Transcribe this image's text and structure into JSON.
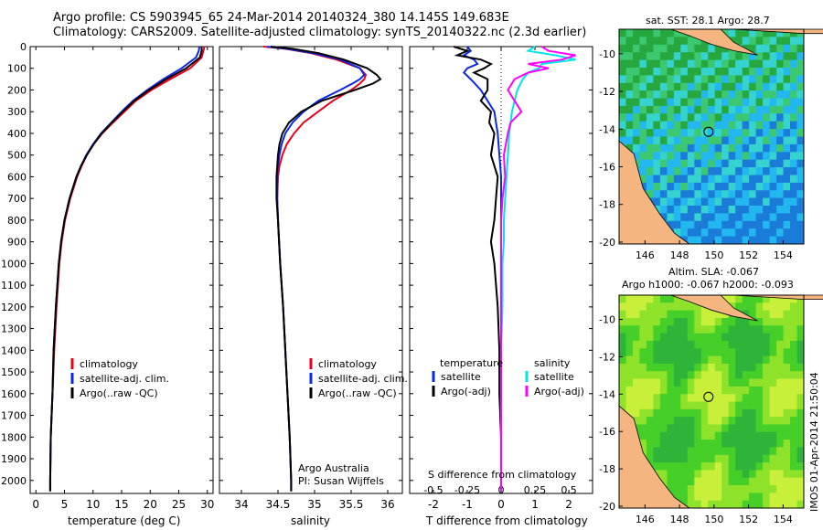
{
  "header": {
    "line1": "Argo profile: CS 5903945_65 24-Mar-2014 20140324_380 14.145S 149.683E",
    "line2": "Climatology: CARS2009. Satellite-adjusted climatology: synTS_20140322.nc (2.3d earlier)"
  },
  "side_text": "IMOS 01-Apr-2014 21:50:04",
  "colors": {
    "clim": "#e8001c",
    "sat": "#0a28e6",
    "argo": "#000000",
    "sat_s": "#00e6e6",
    "argo_s": "#ff00ff",
    "land": "#f4b580"
  },
  "chart_data": [
    {
      "type": "line",
      "id": "temperature",
      "xlabel": "temperature (deg C)",
      "xlim": [
        -1,
        31
      ],
      "xticks": [
        "0",
        "5",
        "10",
        "15",
        "20",
        "25",
        "30"
      ],
      "ylim": [
        0,
        2060
      ],
      "yticks": [
        "0",
        "100",
        "200",
        "300",
        "400",
        "500",
        "600",
        "700",
        "800",
        "900",
        "1000",
        "1100",
        "1200",
        "1300",
        "1400",
        "1500",
        "1600",
        "1700",
        "1800",
        "1900",
        "2000"
      ],
      "depth": [
        0,
        20,
        50,
        100,
        150,
        200,
        250,
        300,
        350,
        400,
        450,
        500,
        550,
        600,
        700,
        800,
        900,
        1000,
        1200,
        1400,
        1600,
        1800,
        2000,
        2050
      ],
      "series": [
        {
          "name": "climatology",
          "key": "clim",
          "values": [
            29.5,
            29.3,
            29.0,
            27.0,
            23.5,
            20.2,
            17.5,
            15.5,
            13.5,
            11.6,
            10.1,
            8.9,
            8.0,
            7.2,
            6.0,
            5.1,
            4.5,
            4.1,
            3.6,
            3.2,
            2.9,
            2.6,
            2.5,
            2.5
          ]
        },
        {
          "name": "satellite-adj. clim.",
          "key": "sat",
          "values": [
            28.6,
            28.5,
            28.0,
            25.5,
            22.3,
            19.5,
            17.0,
            15.0,
            13.2,
            11.4,
            10.0,
            8.8,
            7.9,
            7.1,
            5.9,
            5.0,
            4.4,
            4.0,
            3.5,
            3.1,
            2.9,
            2.6,
            2.5,
            2.5
          ]
        },
        {
          "name": "Argo(..raw -QC)",
          "key": "argo",
          "values": [
            29.0,
            29.0,
            28.7,
            26.3,
            22.8,
            19.8,
            17.2,
            15.2,
            13.3,
            11.5,
            10.1,
            8.9,
            7.9,
            7.1,
            5.9,
            5.0,
            4.4,
            4.0,
            3.5,
            3.1,
            2.9,
            2.6,
            2.5,
            2.5
          ]
        }
      ],
      "legend": [
        "climatology",
        "satellite-adj. clim.",
        "Argo(..raw -QC)"
      ]
    },
    {
      "type": "line",
      "id": "salinity",
      "xlabel": "salinity",
      "xlim": [
        33.7,
        36.2
      ],
      "xticks": [
        "34",
        "34.5",
        "35",
        "35.5",
        "36"
      ],
      "ylim": [
        0,
        2060
      ],
      "depth": [
        0,
        10,
        30,
        60,
        100,
        130,
        150,
        170,
        200,
        250,
        300,
        350,
        400,
        450,
        500,
        550,
        600,
        700,
        800,
        1000,
        1200,
        1400,
        1600,
        1800,
        2000,
        2050
      ],
      "series": [
        {
          "name": "climatology",
          "key": "clim",
          "values": [
            34.3,
            34.6,
            34.95,
            35.3,
            35.62,
            35.7,
            35.68,
            35.62,
            35.5,
            35.25,
            35.05,
            34.85,
            34.72,
            34.62,
            34.56,
            34.52,
            34.5,
            34.49,
            34.5,
            34.53,
            34.57,
            34.6,
            34.63,
            34.66,
            34.68,
            34.68
          ]
        },
        {
          "name": "satellite-adj. clim.",
          "key": "sat",
          "values": [
            34.35,
            34.62,
            34.98,
            35.35,
            35.62,
            35.68,
            35.62,
            35.52,
            35.35,
            35.05,
            34.85,
            34.7,
            34.6,
            34.55,
            34.52,
            34.5,
            34.49,
            34.49,
            34.5,
            34.53,
            34.57,
            34.6,
            34.63,
            34.66,
            34.68,
            34.68
          ]
        },
        {
          "name": "Argo(..raw -QC)",
          "key": "argo",
          "values": [
            34.4,
            34.7,
            35.05,
            35.4,
            35.72,
            35.85,
            35.9,
            35.8,
            35.55,
            35.1,
            34.82,
            34.65,
            34.56,
            34.52,
            34.5,
            34.49,
            34.48,
            34.48,
            34.5,
            34.53,
            34.57,
            34.6,
            34.63,
            34.66,
            34.68,
            34.68
          ]
        }
      ],
      "legend": [
        "climatology",
        "satellite-adj. clim.",
        "Argo(..raw -QC)"
      ],
      "credit1": "Argo Australia",
      "credit2": "PI: Susan Wijffels"
    },
    {
      "type": "line",
      "id": "difference",
      "xlabel_s": "S difference from climatology",
      "xlabel_t": "T difference from climatology",
      "xlim_t": [
        -2.7,
        2.7
      ],
      "xticks_t": [
        "-2",
        "-1",
        "0",
        "1",
        "2"
      ],
      "xticks_s": [
        "-0.5",
        "-0.25",
        "0",
        "0.25",
        "0.5"
      ],
      "ylim": [
        0,
        2060
      ],
      "depth": [
        0,
        20,
        40,
        60,
        80,
        100,
        120,
        150,
        200,
        250,
        300,
        350,
        400,
        500,
        600,
        700,
        800,
        900,
        1000,
        1200,
        1400,
        1600,
        1800,
        2000,
        2050
      ],
      "series": [
        {
          "name": "temperature satellite",
          "key": "sat",
          "values": [
            -1.0,
            -0.9,
            -1.1,
            -0.8,
            -0.7,
            -1.0,
            -1.1,
            -0.9,
            -0.6,
            -0.4,
            -0.2,
            -0.15,
            -0.1,
            -0.05,
            0.0,
            0.0,
            0.0,
            0.0,
            0.0,
            0.0,
            0.0,
            0.0,
            0.0,
            0.0,
            0.0
          ]
        },
        {
          "name": "temperature Argo(-adj)",
          "key": "argo",
          "values": [
            -1.4,
            -1.0,
            -1.3,
            -0.6,
            -0.3,
            -0.5,
            -0.8,
            -0.4,
            -0.4,
            -0.6,
            -0.3,
            -0.35,
            -0.2,
            -0.3,
            -0.1,
            -0.15,
            -0.2,
            -0.3,
            -0.2,
            -0.1,
            -0.05,
            -0.05,
            0.0,
            0.0,
            0.0
          ]
        },
        {
          "name": "salinity satellite",
          "key": "sat_s",
          "values": [
            0.25,
            0.2,
            0.4,
            0.55,
            0.3,
            0.28,
            0.2,
            0.16,
            0.12,
            0.1,
            0.08,
            0.07,
            0.06,
            0.05,
            0.04,
            0.03,
            0.02,
            0.02,
            0.01,
            0.01,
            0.0,
            0.0,
            0.0,
            0.0,
            0.0
          ]
        },
        {
          "name": "salinity Argo(-adj)",
          "key": "argo_s",
          "values": [
            0.3,
            0.35,
            0.55,
            0.45,
            0.2,
            0.35,
            0.2,
            0.1,
            0.05,
            0.1,
            0.15,
            0.07,
            0.05,
            0.02,
            0.03,
            0.01,
            0.0,
            0.0,
            0.0,
            0.0,
            0.0,
            0.0,
            0.0,
            0.0,
            0.0
          ]
        }
      ],
      "legend_t_title": "temperature",
      "legend_s_title": "salinity",
      "legend_t": [
        "satellite",
        "Argo(-adj)"
      ],
      "legend_s": [
        "satellite",
        "Argo(-adj)"
      ]
    },
    {
      "type": "heatmap",
      "id": "sst_map",
      "title": "sat. SST: 28.1  Argo: 28.7",
      "xlim": [
        144.5,
        155.2
      ],
      "ylim": [
        -20.1,
        -8.7
      ],
      "xticks": [
        "146",
        "148",
        "150",
        "152",
        "154"
      ],
      "yticks": [
        "-10",
        "-12",
        "-14",
        "-16",
        "-18",
        "-20"
      ],
      "float_position": {
        "lon": 149.683,
        "lat": -14.145
      }
    },
    {
      "type": "heatmap",
      "id": "sla_map",
      "title1": "Altim. SLA: -0.067",
      "title2": "Argo h1000: -0.067 h2000: -0.093",
      "xlim": [
        144.5,
        155.2
      ],
      "ylim": [
        -20.1,
        -8.7
      ],
      "xticks": [
        "146",
        "148",
        "150",
        "152",
        "154"
      ],
      "yticks": [
        "-10",
        "-12",
        "-14",
        "-16",
        "-18",
        "-20"
      ],
      "float_position": {
        "lon": 149.683,
        "lat": -14.145
      }
    }
  ]
}
